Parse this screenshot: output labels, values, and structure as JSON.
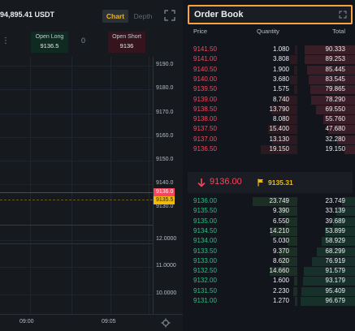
{
  "chart_header": {
    "pair_price": "94,895.41 USDT",
    "chart_tab": "Chart",
    "depth_tab": "Depth"
  },
  "positions": {
    "open_long_label": "Open Long",
    "open_long_value": "9136.5",
    "zero_value": "0",
    "open_short_label": "Open Short",
    "open_short_value": "9136"
  },
  "price_axis": {
    "ticks": [
      "9190.0",
      "9180.0",
      "9170.0",
      "9160.0",
      "9150.0",
      "9140.0",
      "9130.0"
    ],
    "volume_ticks": [
      "12.0000",
      "11.0000",
      "10.0000"
    ],
    "last_price_marker": "9136.0",
    "mark_price_marker": "9135.5"
  },
  "time_axis": {
    "ticks": [
      "09:00",
      "09:05"
    ]
  },
  "order_book": {
    "title": "Order Book",
    "col_price": "Price",
    "col_quantity": "Quantity",
    "col_total": "Total",
    "asks": [
      {
        "price": "9141.50",
        "qty": "1.080",
        "total": "90.333",
        "depth": 0.89
      },
      {
        "price": "9141.00",
        "qty": "3.808",
        "total": "89.253",
        "depth": 0.88
      },
      {
        "price": "9140.50",
        "qty": "1.900",
        "total": "85.445",
        "depth": 0.84
      },
      {
        "price": "9140.00",
        "qty": "3.680",
        "total": "83.545",
        "depth": 0.82
      },
      {
        "price": "9139.50",
        "qty": "1.575",
        "total": "79.865",
        "depth": 0.79
      },
      {
        "price": "9139.00",
        "qty": "8.740",
        "total": "78.290",
        "depth": 0.77
      },
      {
        "price": "9138.50",
        "qty": "13.790",
        "total": "69.550",
        "depth": 0.68
      },
      {
        "price": "9138.00",
        "qty": "8.080",
        "total": "55.760",
        "depth": 0.55
      },
      {
        "price": "9137.50",
        "qty": "15.400",
        "total": "47.680",
        "depth": 0.47
      },
      {
        "price": "9137.00",
        "qty": "13.130",
        "total": "32.280",
        "depth": 0.32
      },
      {
        "price": "9136.50",
        "qty": "19.150",
        "total": "19.150",
        "depth": 0.19
      }
    ],
    "mid_price": "9136.00",
    "mark_price": "9135.31",
    "bids": [
      {
        "price": "9136.00",
        "qty": "23.749",
        "total": "23.749",
        "depth": 0.23
      },
      {
        "price": "9135.50",
        "qty": "9.390",
        "total": "33.139",
        "depth": 0.33
      },
      {
        "price": "9135.00",
        "qty": "6.550",
        "total": "39.689",
        "depth": 0.39
      },
      {
        "price": "9134.50",
        "qty": "14.210",
        "total": "53.899",
        "depth": 0.53
      },
      {
        "price": "9134.00",
        "qty": "5.030",
        "total": "58.929",
        "depth": 0.58
      },
      {
        "price": "9133.50",
        "qty": "9.370",
        "total": "68.299",
        "depth": 0.67
      },
      {
        "price": "9133.00",
        "qty": "8.620",
        "total": "76.919",
        "depth": 0.76
      },
      {
        "price": "9132.50",
        "qty": "14.660",
        "total": "91.579",
        "depth": 0.9
      },
      {
        "price": "9132.00",
        "qty": "1.600",
        "total": "93.179",
        "depth": 0.92
      },
      {
        "price": "9131.50",
        "qty": "2.230",
        "total": "95.409",
        "depth": 0.94
      },
      {
        "price": "9131.00",
        "qty": "1.270",
        "depth": 0.95,
        "total": "96.679"
      }
    ]
  },
  "colors": {
    "accent": "#f0b90b",
    "ask": "#f6465d",
    "bid": "#2ebd85",
    "highlight_border": "#f7a440"
  },
  "icons": {
    "chart_expand": "expand-icon",
    "book_expand": "expand-icon",
    "mid_arrow": "arrow-down-icon",
    "mark_flag": "flag-icon",
    "settings": "gear-icon"
  }
}
